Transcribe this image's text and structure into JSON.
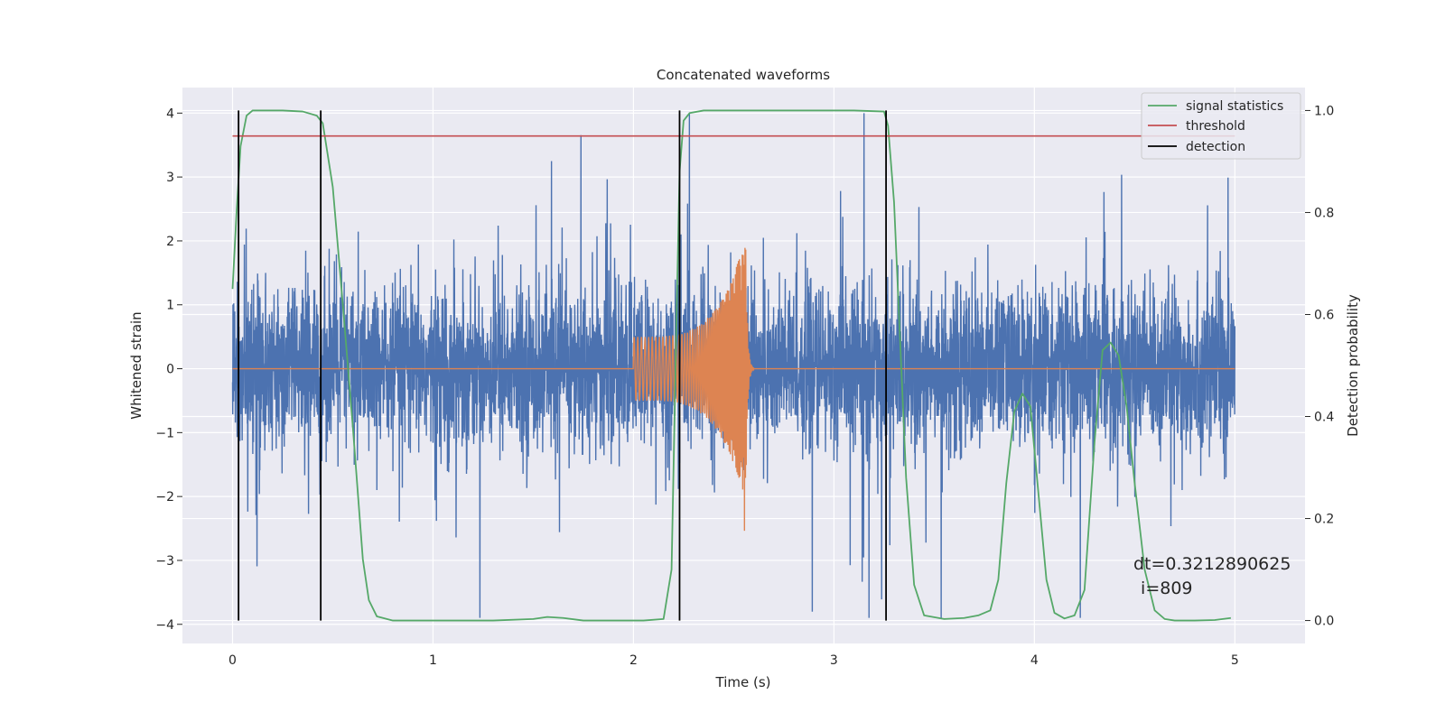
{
  "chart_data": {
    "type": "line",
    "title": "Concatenated waveforms",
    "xlabel": "Time (s)",
    "ylabel": "Whitened strain",
    "ylabel_right": "Detection probability",
    "xlim": [
      -0.25,
      5.35
    ],
    "ylim": [
      -4.3,
      4.4
    ],
    "ylim_right": [
      -0.045,
      1.045
    ],
    "x_ticks": [
      0,
      1,
      2,
      3,
      4,
      5
    ],
    "y_ticks": [
      -4,
      -3,
      -2,
      -1,
      0,
      1,
      2,
      3,
      4
    ],
    "y_ticks_right": [
      0.0,
      0.2,
      0.4,
      0.6,
      0.8,
      1.0
    ],
    "x_tick_labels": [
      "0",
      "1",
      "2",
      "3",
      "4",
      "5"
    ],
    "y_tick_labels": [
      "−4",
      "−3",
      "−2",
      "−1",
      "0",
      "1",
      "2",
      "3",
      "4"
    ],
    "y_tick_labels_right": [
      "0.0",
      "0.2",
      "0.4",
      "0.6",
      "0.8",
      "1.0"
    ],
    "grid": true,
    "legend_position": "top-right",
    "series": [
      {
        "name": "",
        "axis": "left",
        "color": "#4c72b0",
        "kind": "noise",
        "x_range": [
          0,
          5
        ],
        "typical_envelope": [
          -1.5,
          1.6
        ],
        "peak_max": 4.0,
        "peak_min": -3.9
      },
      {
        "name": "",
        "axis": "left",
        "color": "#dd8452",
        "kind": "chirp",
        "x_range": [
          0,
          5
        ],
        "chirp_start": 2.0,
        "chirp_merger": 2.56,
        "amplitude_start": 0.5,
        "amplitude_peak": 2.05,
        "amplitude_trough": -2.65
      },
      {
        "name": "signal statistics",
        "axis": "right",
        "color": "#55a868",
        "x": [
          0.0,
          0.02,
          0.04,
          0.07,
          0.1,
          0.15,
          0.25,
          0.35,
          0.42,
          0.45,
          0.5,
          0.55,
          0.6,
          0.65,
          0.68,
          0.72,
          0.8,
          1.0,
          1.3,
          1.5,
          1.57,
          1.65,
          1.75,
          1.9,
          2.05,
          2.15,
          2.19,
          2.21,
          2.23,
          2.25,
          2.28,
          2.35,
          2.5,
          2.8,
          3.1,
          3.25,
          3.27,
          3.3,
          3.33,
          3.36,
          3.4,
          3.45,
          3.55,
          3.65,
          3.72,
          3.78,
          3.82,
          3.86,
          3.9,
          3.94,
          3.98,
          4.02,
          4.06,
          4.1,
          4.15,
          4.2,
          4.25,
          4.3,
          4.34,
          4.38,
          4.42,
          4.46,
          4.5,
          4.55,
          4.6,
          4.65,
          4.7,
          4.8,
          4.9,
          4.98
        ],
        "y": [
          0.65,
          0.8,
          0.93,
          0.99,
          1.0,
          1.0,
          1.0,
          0.998,
          0.99,
          0.975,
          0.85,
          0.62,
          0.38,
          0.12,
          0.04,
          0.008,
          0.0,
          0.0,
          0.0,
          0.003,
          0.007,
          0.005,
          0.0,
          0.0,
          0.0,
          0.003,
          0.1,
          0.5,
          0.88,
          0.98,
          0.995,
          1.0,
          1.0,
          1.0,
          1.0,
          0.998,
          0.97,
          0.82,
          0.55,
          0.28,
          0.07,
          0.01,
          0.003,
          0.005,
          0.01,
          0.02,
          0.08,
          0.27,
          0.41,
          0.445,
          0.42,
          0.25,
          0.08,
          0.015,
          0.004,
          0.01,
          0.06,
          0.35,
          0.53,
          0.545,
          0.52,
          0.42,
          0.27,
          0.1,
          0.02,
          0.003,
          0.0,
          0.0,
          0.001,
          0.005
        ]
      },
      {
        "name": "threshold",
        "axis": "right",
        "color": "#c44e52",
        "x": [
          0,
          5
        ],
        "y": [
          0.95,
          0.95
        ]
      },
      {
        "name": "detection",
        "axis": "right",
        "color": "#000000",
        "kind": "vlines",
        "x": [
          0.03,
          0.44,
          2.23,
          3.26
        ],
        "y_range": [
          0.0,
          1.0
        ]
      }
    ],
    "annotation": [
      "dt=0.3212890625",
      " i=809"
    ]
  }
}
